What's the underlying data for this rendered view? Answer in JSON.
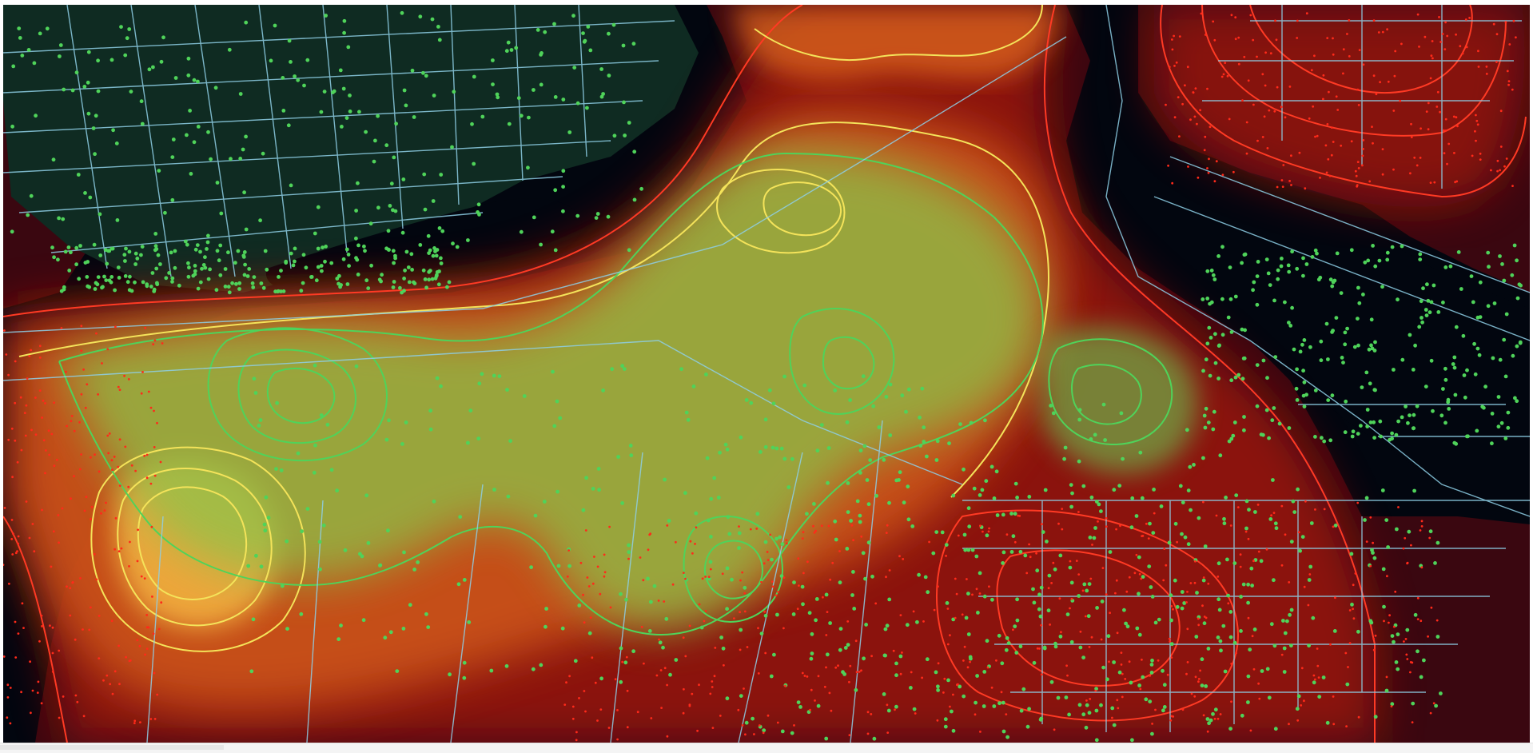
{
  "map": {
    "theme": "dark",
    "background_color": "#02060f",
    "layers": [
      {
        "name": "road-network",
        "color": "#8ecfe6"
      },
      {
        "name": "point-observations-green",
        "color": "#4fd35a"
      },
      {
        "name": "point-observations-red",
        "color": "#ff2a1a"
      },
      {
        "name": "density-contours-low",
        "color": "#ff2a1a"
      },
      {
        "name": "density-contours-mid",
        "color": "#f2e55a"
      },
      {
        "name": "density-contours-high",
        "color": "#4ad45b"
      }
    ],
    "icons": [
      "map-canvas"
    ]
  },
  "palette": {
    "water": "#02060f",
    "land_dark_red": "#3a0710",
    "land_red": "#9a1310",
    "land_orange": "#d9621a",
    "green_region": "#0f2b22",
    "green_field": "#8bc34a",
    "contour_red": "#ff3a24",
    "contour_yellow": "#f4e35a",
    "contour_green": "#4fd35a",
    "road": "#8ecfe6"
  }
}
